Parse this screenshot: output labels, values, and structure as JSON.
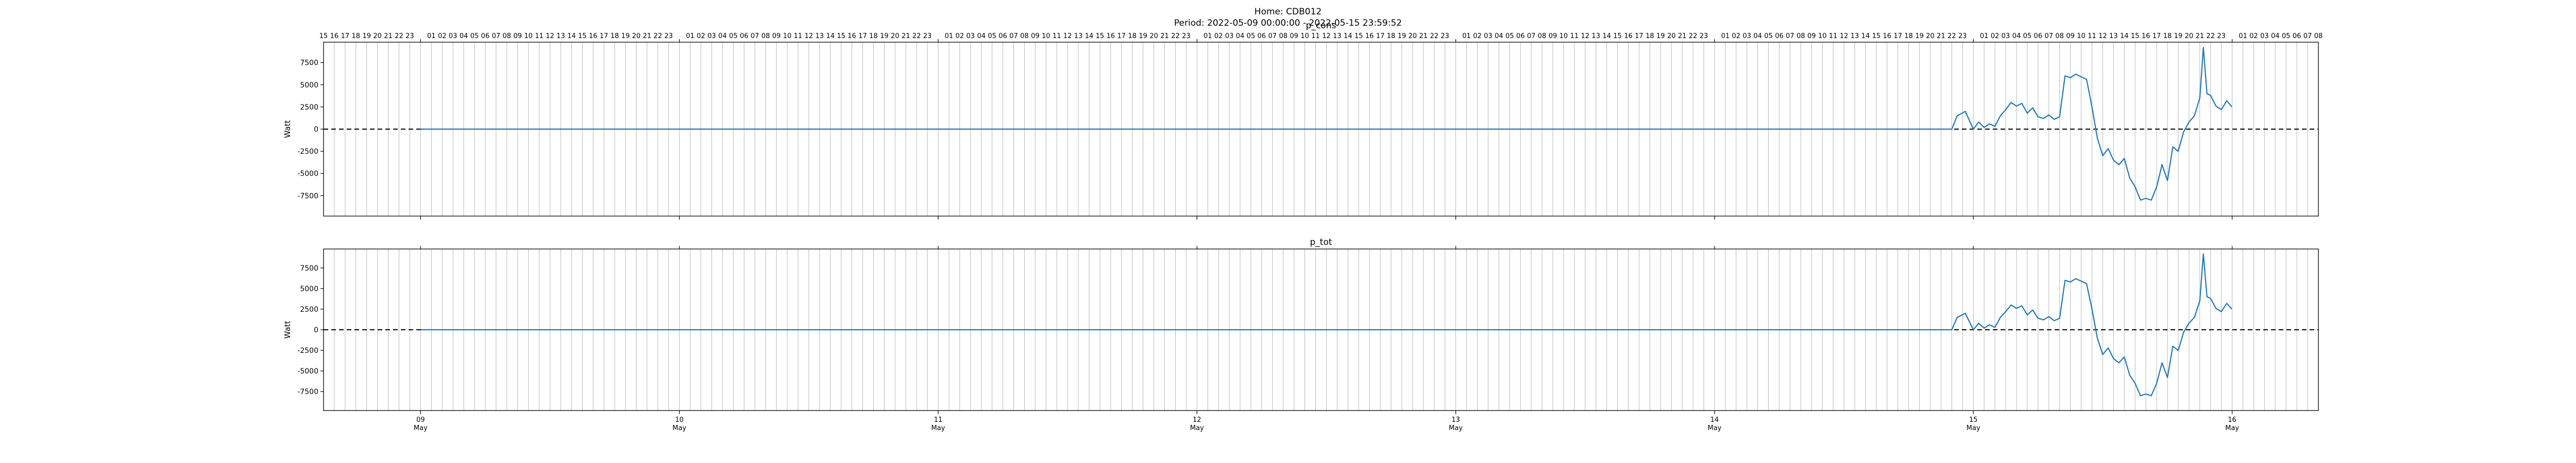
{
  "figure": {
    "title_line1": "Home: CDB012",
    "title_line2": "Period: 2022-05-09 00:00:00 - 2022-05-15 23:59:52"
  },
  "colors": {
    "line": "#1f77b4",
    "grid": "#b0b0b0",
    "zero_line": "#000000",
    "axes": "#000000"
  },
  "chart_data": [
    {
      "type": "line",
      "title": "p_cons",
      "ylabel": "Watt",
      "xlim": [
        "2022-05-08 15:00",
        "2022-05-16 08:00"
      ],
      "ylim": [
        -9800,
        9800
      ],
      "yticks": [
        -7500,
        -5000,
        -2500,
        0,
        2500,
        5000,
        7500
      ],
      "x_major_ticks": [
        {
          "day": "09",
          "month": "May"
        },
        {
          "day": "10",
          "month": "May"
        },
        {
          "day": "11",
          "month": "May"
        },
        {
          "day": "12",
          "month": "May"
        },
        {
          "day": "13",
          "month": "May"
        },
        {
          "day": "14",
          "month": "May"
        },
        {
          "day": "15",
          "month": "May"
        },
        {
          "day": "16",
          "month": "May"
        }
      ],
      "top_axis": "hour of day, 01-23 each day",
      "hourly_gridlines": true,
      "reference_line": {
        "y": 0,
        "style": "dashed"
      },
      "series": [
        {
          "x": [
            "2022-05-09 00:00",
            "2022-05-14 22:00",
            "2022-05-14 22:30",
            "2022-05-14 23:15",
            "2022-05-15 00:00",
            "2022-05-15 00:30",
            "2022-05-15 01:00",
            "2022-05-15 01:30",
            "2022-05-15 02:00",
            "2022-05-15 02:30",
            "2022-05-15 03:00",
            "2022-05-15 03:30",
            "2022-05-15 04:00",
            "2022-05-15 04:30",
            "2022-05-15 05:00",
            "2022-05-15 05:30",
            "2022-05-15 06:00",
            "2022-05-15 06:30",
            "2022-05-15 07:00",
            "2022-05-15 07:30",
            "2022-05-15 08:00",
            "2022-05-15 08:30",
            "2022-05-15 09:00",
            "2022-05-15 09:30",
            "2022-05-15 10:00",
            "2022-05-15 10:30",
            "2022-05-15 11:00",
            "2022-05-15 11:30",
            "2022-05-15 12:00",
            "2022-05-15 12:30",
            "2022-05-15 13:00",
            "2022-05-15 13:30",
            "2022-05-15 14:00",
            "2022-05-15 14:30",
            "2022-05-15 15:00",
            "2022-05-15 15:30",
            "2022-05-15 16:00",
            "2022-05-15 16:30",
            "2022-05-15 17:00",
            "2022-05-15 17:30",
            "2022-05-15 18:00",
            "2022-05-15 18:30",
            "2022-05-15 19:00",
            "2022-05-15 19:30",
            "2022-05-15 20:00",
            "2022-05-15 20:30",
            "2022-05-15 21:00",
            "2022-05-15 21:20",
            "2022-05-15 21:40",
            "2022-05-15 22:00",
            "2022-05-15 22:30",
            "2022-05-15 23:00",
            "2022-05-15 23:30",
            "2022-05-15 23:59"
          ],
          "y": [
            0,
            0,
            1500,
            2000,
            0,
            800,
            200,
            600,
            300,
            1500,
            2200,
            3000,
            2600,
            2900,
            1800,
            2400,
            1400,
            1200,
            1600,
            1100,
            1400,
            6000,
            5800,
            6200,
            5900,
            5600,
            2500,
            -1000,
            -3000,
            -2200,
            -3500,
            -4000,
            -3300,
            -5500,
            -6500,
            -8000,
            -7800,
            -8000,
            -6500,
            -4000,
            -5800,
            -2000,
            -2500,
            -300,
            800,
            1500,
            3500,
            9200,
            4000,
            3800,
            2600,
            2200,
            3200,
            2500
          ]
        }
      ]
    },
    {
      "type": "line",
      "title": "p_tot",
      "ylabel": "Watt",
      "xlim": [
        "2022-05-08 15:00",
        "2022-05-16 08:00"
      ],
      "ylim": [
        -9800,
        9800
      ],
      "yticks": [
        -7500,
        -5000,
        -2500,
        0,
        2500,
        5000,
        7500
      ],
      "x_major_ticks": [
        {
          "day": "09",
          "month": "May"
        },
        {
          "day": "10",
          "month": "May"
        },
        {
          "day": "11",
          "month": "May"
        },
        {
          "day": "12",
          "month": "May"
        },
        {
          "day": "13",
          "month": "May"
        },
        {
          "day": "14",
          "month": "May"
        },
        {
          "day": "15",
          "month": "May"
        },
        {
          "day": "16",
          "month": "May"
        }
      ],
      "hourly_gridlines": true,
      "reference_line": {
        "y": 0,
        "style": "dashed"
      },
      "series": [
        {
          "x": [
            "2022-05-09 00:00",
            "2022-05-14 22:00",
            "2022-05-14 22:30",
            "2022-05-14 23:15",
            "2022-05-15 00:00",
            "2022-05-15 00:30",
            "2022-05-15 01:00",
            "2022-05-15 01:30",
            "2022-05-15 02:00",
            "2022-05-15 02:30",
            "2022-05-15 03:00",
            "2022-05-15 03:30",
            "2022-05-15 04:00",
            "2022-05-15 04:30",
            "2022-05-15 05:00",
            "2022-05-15 05:30",
            "2022-05-15 06:00",
            "2022-05-15 06:30",
            "2022-05-15 07:00",
            "2022-05-15 07:30",
            "2022-05-15 08:00",
            "2022-05-15 08:30",
            "2022-05-15 09:00",
            "2022-05-15 09:30",
            "2022-05-15 10:00",
            "2022-05-15 10:30",
            "2022-05-15 11:00",
            "2022-05-15 11:30",
            "2022-05-15 12:00",
            "2022-05-15 12:30",
            "2022-05-15 13:00",
            "2022-05-15 13:30",
            "2022-05-15 14:00",
            "2022-05-15 14:30",
            "2022-05-15 15:00",
            "2022-05-15 15:30",
            "2022-05-15 16:00",
            "2022-05-15 16:30",
            "2022-05-15 17:00",
            "2022-05-15 17:30",
            "2022-05-15 18:00",
            "2022-05-15 18:30",
            "2022-05-15 19:00",
            "2022-05-15 19:30",
            "2022-05-15 20:00",
            "2022-05-15 20:30",
            "2022-05-15 21:00",
            "2022-05-15 21:20",
            "2022-05-15 21:40",
            "2022-05-15 22:00",
            "2022-05-15 22:30",
            "2022-05-15 23:00",
            "2022-05-15 23:30",
            "2022-05-15 23:59"
          ],
          "y": [
            0,
            0,
            1500,
            2000,
            0,
            800,
            200,
            600,
            300,
            1500,
            2200,
            3000,
            2600,
            2900,
            1800,
            2400,
            1400,
            1200,
            1600,
            1100,
            1400,
            6000,
            5800,
            6200,
            5900,
            5600,
            2500,
            -1000,
            -3000,
            -2200,
            -3500,
            -4000,
            -3300,
            -5500,
            -6500,
            -8000,
            -7800,
            -8000,
            -6500,
            -4000,
            -5800,
            -2000,
            -2500,
            -300,
            800,
            1500,
            3500,
            9200,
            4000,
            3800,
            2600,
            2200,
            3200,
            2500
          ]
        }
      ]
    }
  ]
}
